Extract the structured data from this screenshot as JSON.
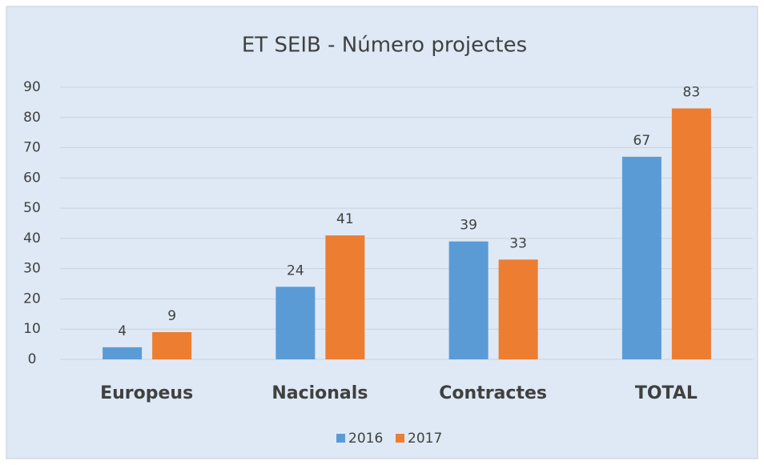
{
  "chart_data": {
    "type": "bar",
    "title": "ET SEIB - Número projectes",
    "categories": [
      "Europeus",
      "Nacionals",
      "Contractes",
      "TOTAL"
    ],
    "series": [
      {
        "name": "2016",
        "color": "#5b9bd5",
        "values": [
          4,
          24,
          39,
          67
        ]
      },
      {
        "name": "2017",
        "color": "#ed7d31",
        "values": [
          9,
          41,
          33,
          83
        ]
      }
    ],
    "ylim": [
      0,
      90
    ],
    "yticks": [
      0,
      10,
      20,
      30,
      40,
      50,
      60,
      70,
      80,
      90
    ],
    "grid": true,
    "legend": "bottom"
  }
}
